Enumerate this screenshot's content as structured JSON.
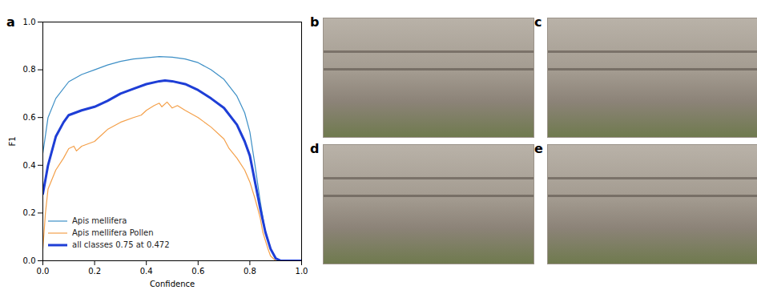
{
  "chart_data": {
    "type": "line",
    "panel_label": "a",
    "xlabel": "Confidence",
    "ylabel": "F1",
    "xlim": [
      0,
      1
    ],
    "ylim": [
      0,
      1
    ],
    "xticks": [
      {
        "value": 0,
        "label": "0.0"
      },
      {
        "value": 0.2,
        "label": "0.2"
      },
      {
        "value": 0.4,
        "label": "0.4"
      },
      {
        "value": 0.6,
        "label": "0.6"
      },
      {
        "value": 0.8,
        "label": "0.8"
      },
      {
        "value": 1,
        "label": "1.0"
      }
    ],
    "yticks": [
      {
        "value": 0,
        "label": "0.0"
      },
      {
        "value": 0.2,
        "label": "0.2"
      },
      {
        "value": 0.4,
        "label": "0.4"
      },
      {
        "value": 0.6,
        "label": "0.6"
      },
      {
        "value": 0.8,
        "label": "0.8"
      },
      {
        "value": 1,
        "label": "1.0"
      }
    ],
    "legend": "lower left",
    "series": [
      {
        "name": "Apis mellifera",
        "color": "#3d8fc6",
        "x": [
          0,
          0.02,
          0.05,
          0.1,
          0.15,
          0.2,
          0.25,
          0.3,
          0.35,
          0.4,
          0.45,
          0.5,
          0.55,
          0.6,
          0.65,
          0.7,
          0.75,
          0.78,
          0.8,
          0.82,
          0.84,
          0.86,
          0.88,
          0.9,
          0.92,
          1
        ],
        "values": [
          0.45,
          0.6,
          0.68,
          0.75,
          0.78,
          0.8,
          0.82,
          0.835,
          0.845,
          0.85,
          0.855,
          0.853,
          0.845,
          0.83,
          0.8,
          0.76,
          0.69,
          0.62,
          0.54,
          0.4,
          0.25,
          0.12,
          0.05,
          0.01,
          0,
          0
        ]
      },
      {
        "name": "Apis mellifera Pollen",
        "color": "#f4a04a",
        "x": [
          0,
          0.01,
          0.02,
          0.05,
          0.08,
          0.1,
          0.12,
          0.13,
          0.15,
          0.2,
          0.22,
          0.25,
          0.3,
          0.35,
          0.38,
          0.4,
          0.43,
          0.45,
          0.46,
          0.48,
          0.5,
          0.52,
          0.55,
          0.6,
          0.65,
          0.7,
          0.72,
          0.75,
          0.78,
          0.8,
          0.82,
          0.84,
          0.85,
          0.87,
          0.88,
          0.9,
          1
        ],
        "values": [
          0.05,
          0.2,
          0.3,
          0.38,
          0.43,
          0.47,
          0.48,
          0.46,
          0.48,
          0.5,
          0.52,
          0.55,
          0.58,
          0.6,
          0.61,
          0.63,
          0.65,
          0.66,
          0.645,
          0.665,
          0.64,
          0.65,
          0.63,
          0.6,
          0.56,
          0.51,
          0.47,
          0.43,
          0.38,
          0.33,
          0.26,
          0.18,
          0.12,
          0.05,
          0.02,
          0,
          0
        ]
      },
      {
        "name": "all classes 0.75 at 0.472",
        "color": "#1e3ed6",
        "x": [
          0,
          0.02,
          0.05,
          0.08,
          0.1,
          0.15,
          0.2,
          0.25,
          0.3,
          0.35,
          0.4,
          0.45,
          0.472,
          0.5,
          0.55,
          0.6,
          0.65,
          0.7,
          0.75,
          0.78,
          0.8,
          0.82,
          0.84,
          0.86,
          0.88,
          0.9,
          0.92,
          1
        ],
        "values": [
          0.28,
          0.4,
          0.52,
          0.58,
          0.61,
          0.63,
          0.645,
          0.67,
          0.7,
          0.72,
          0.74,
          0.752,
          0.755,
          0.752,
          0.74,
          0.715,
          0.68,
          0.64,
          0.57,
          0.5,
          0.44,
          0.33,
          0.22,
          0.12,
          0.05,
          0.01,
          0,
          0
        ]
      }
    ]
  },
  "images": [
    {
      "label": "b"
    },
    {
      "label": "c"
    },
    {
      "label": "d"
    },
    {
      "label": "e"
    }
  ]
}
